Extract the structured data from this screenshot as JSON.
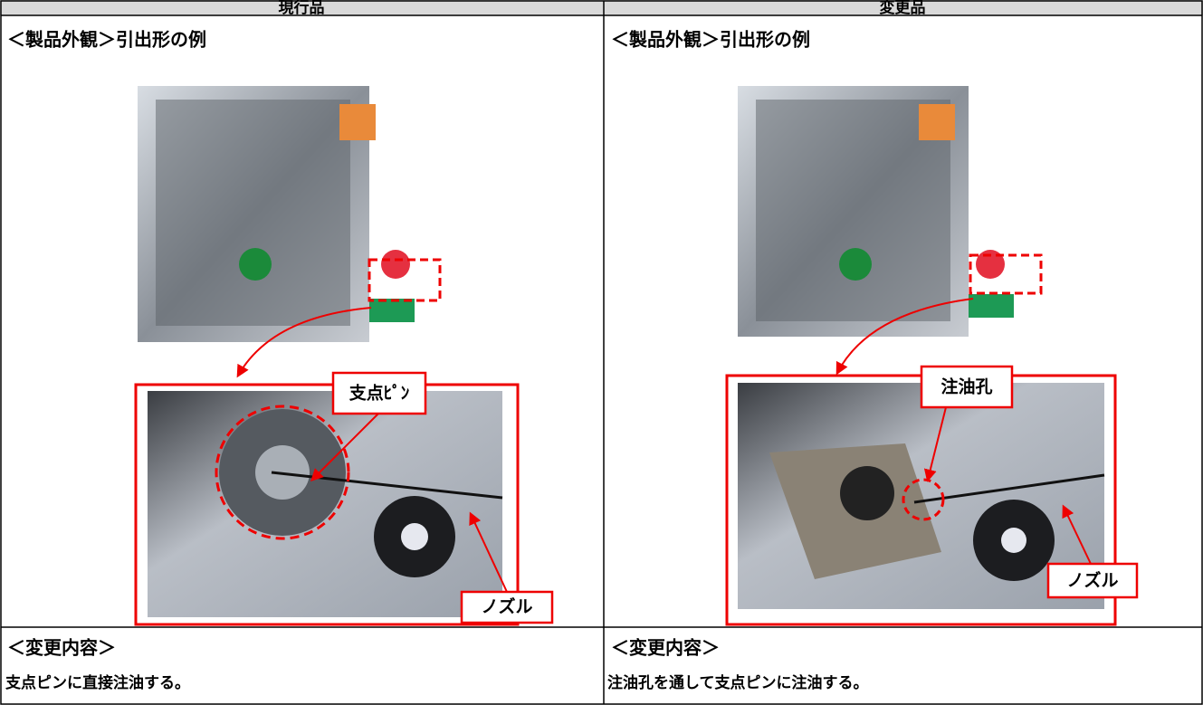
{
  "table": {
    "columns": [
      {
        "header": "現行品",
        "section_title": "＜製品外観＞引出形の例",
        "callouts": [
          "支点ﾋﾟﾝ",
          "ノズル"
        ],
        "change_title": "＜変更内容＞",
        "change_text": "支点ピンに直接注油する。"
      },
      {
        "header": "変更品",
        "section_title": "＜製品外観＞引出形の例",
        "callouts": [
          "注油孔",
          "ノズル"
        ],
        "change_title": "＜変更内容＞",
        "change_text": "注油孔を通して支点ピンに注油する。"
      }
    ]
  }
}
